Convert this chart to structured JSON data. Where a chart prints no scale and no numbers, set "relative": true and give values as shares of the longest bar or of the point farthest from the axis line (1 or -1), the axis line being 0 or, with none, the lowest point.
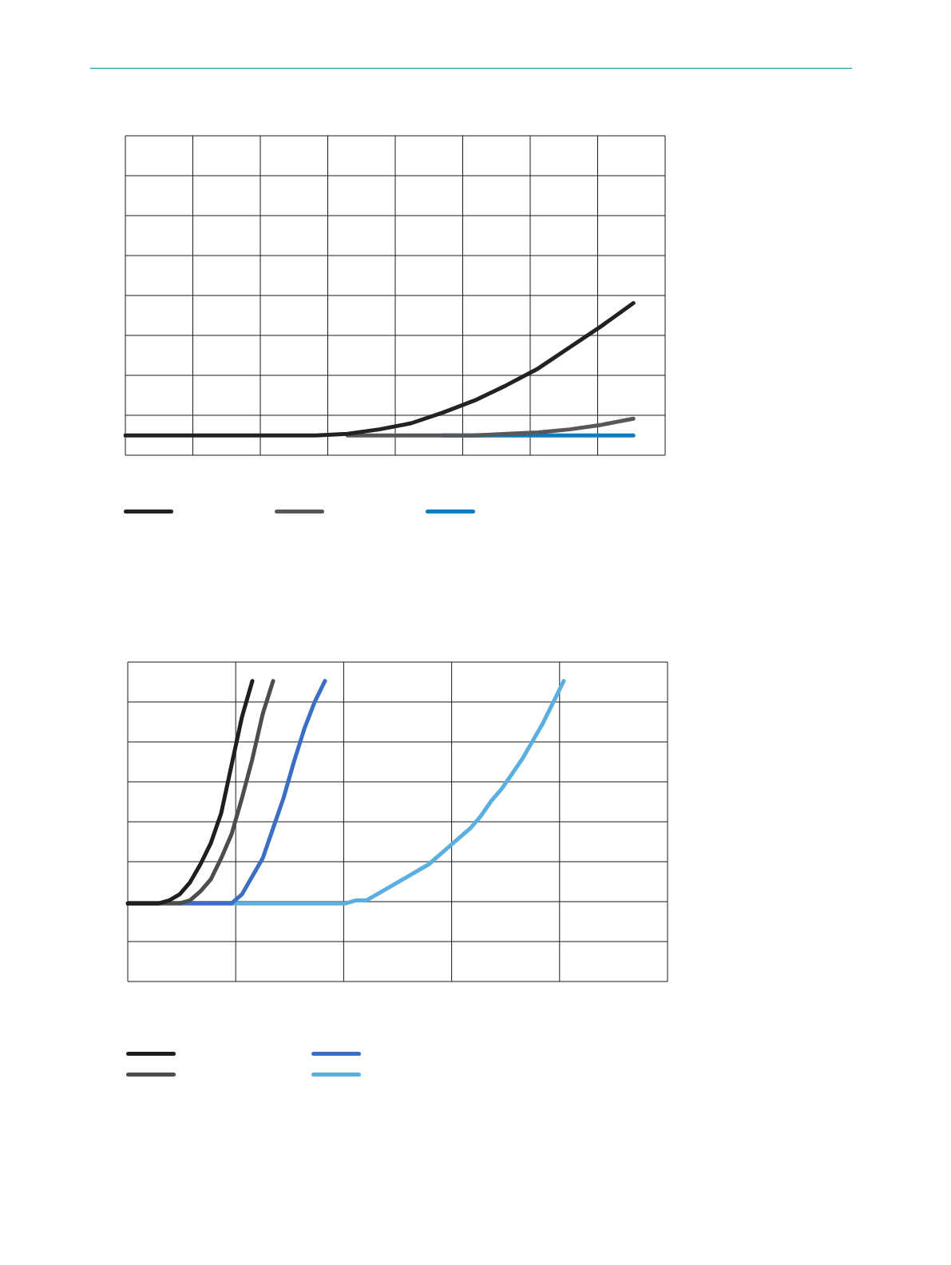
{
  "chart_data": [
    {
      "type": "line",
      "relative": true,
      "grid": true,
      "tick_labels": false,
      "categories": [
        null,
        null,
        null,
        null,
        null,
        null,
        null,
        null,
        null,
        null,
        null,
        null,
        null,
        null,
        null,
        null,
        null,
        null
      ],
      "series": [
        {
          "color": "#222222",
          "values": [
            0.13,
            0.13,
            0.13,
            0.13,
            0.13,
            0.13,
            0.13,
            0.14,
            0.17,
            0.21,
            0.28,
            0.36,
            0.46,
            0.57,
            0.71,
            0.85,
            1,
            null
          ]
        },
        {
          "color": "#58585a",
          "values": [
            null,
            null,
            null,
            null,
            null,
            null,
            null,
            0.13,
            0.13,
            0.13,
            0.13,
            0.13,
            0.14,
            0.15,
            0.17,
            0.2,
            0.24,
            null
          ]
        },
        {
          "color": "#0a7cc1",
          "values": [
            null,
            null,
            null,
            null,
            null,
            null,
            null,
            null,
            null,
            null,
            0.13,
            0.13,
            0.13,
            0.13,
            0.13,
            0.13,
            0.13,
            null
          ]
        }
      ]
    },
    {
      "type": "line",
      "relative": true,
      "grid": true,
      "tick_labels": false,
      "categories": [
        null,
        null,
        null,
        null,
        null,
        null,
        null,
        null,
        null,
        null,
        null,
        null,
        null,
        null,
        null,
        null,
        null,
        null,
        null,
        null,
        null,
        null,
        null,
        null,
        null,
        null,
        null,
        null,
        null,
        null,
        null,
        null,
        null,
        null,
        null,
        null,
        null,
        null,
        null,
        null,
        null,
        null,
        null,
        null,
        null,
        null,
        null,
        null,
        null,
        null,
        null,
        null,
        null
      ],
      "series": [
        {
          "color": "#1f1f1f",
          "values": [
            0.26,
            0.26,
            0.26,
            0.26,
            0.27,
            0.29,
            0.33,
            0.39,
            0.46,
            0.56,
            0.72,
            0.88,
            1,
            null,
            null,
            null,
            null,
            null,
            null,
            null,
            null,
            null,
            null,
            null,
            null,
            null,
            null,
            null,
            null,
            null,
            null,
            null,
            null,
            null,
            null,
            null,
            null,
            null,
            null,
            null,
            null,
            null,
            null,
            null,
            null,
            null,
            null,
            null,
            null,
            null,
            null,
            null,
            null
          ]
        },
        {
          "color": "#4d4d4d",
          "values": [
            0.26,
            0.26,
            0.26,
            0.26,
            0.26,
            0.26,
            0.27,
            0.3,
            0.34,
            0.41,
            0.49,
            0.61,
            0.74,
            0.89,
            1,
            null,
            null,
            null,
            null,
            null,
            null,
            null,
            null,
            null,
            null,
            null,
            null,
            null,
            null,
            null,
            null,
            null,
            null,
            null,
            null,
            null,
            null,
            null,
            null,
            null,
            null,
            null,
            null,
            null,
            null,
            null,
            null,
            null,
            null,
            null,
            null,
            null,
            null
          ]
        },
        {
          "color": "#3a6fc4",
          "values": [
            null,
            null,
            null,
            null,
            null,
            0.26,
            0.26,
            0.26,
            0.26,
            0.26,
            0.26,
            0.29,
            0.35,
            0.41,
            0.51,
            0.61,
            0.73,
            0.84,
            0.93,
            1,
            null,
            null,
            null,
            null,
            null,
            null,
            null,
            null,
            null,
            null,
            null,
            null,
            null,
            null,
            null,
            null,
            null,
            null,
            null,
            null,
            null,
            null,
            null,
            null,
            null,
            null,
            null,
            null,
            null,
            null,
            null,
            null,
            null
          ]
        },
        {
          "color": "#5aafe0",
          "values": [
            null,
            null,
            null,
            null,
            null,
            null,
            null,
            null,
            null,
            null,
            0.26,
            0.26,
            0.26,
            0.26,
            0.26,
            0.26,
            0.26,
            0.26,
            0.26,
            0.26,
            0.26,
            0.26,
            0.27,
            0.27,
            0.29,
            0.31,
            0.33,
            0.35,
            0.37,
            0.39,
            0.42,
            0.45,
            0.48,
            0.51,
            0.55,
            0.6,
            0.64,
            0.69,
            0.74,
            0.8,
            0.86,
            0.93,
            1,
            null,
            null,
            null,
            null,
            null,
            null,
            null,
            null,
            null,
            null
          ]
        }
      ]
    }
  ]
}
